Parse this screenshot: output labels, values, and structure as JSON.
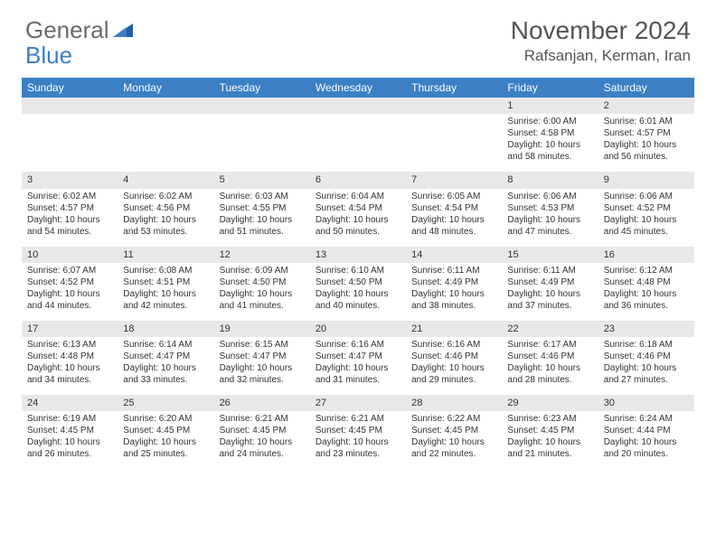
{
  "brand": {
    "part1": "General",
    "part2": "Blue"
  },
  "title": "November 2024",
  "location": "Rafsanjan, Kerman, Iran",
  "colors": {
    "header_bg": "#3b7fc4",
    "header_text": "#ffffff",
    "daynum_bg": "#e8e8e8",
    "text": "#333333",
    "brand_gray": "#6b6b6b",
    "brand_blue": "#3b7fc4",
    "page_bg": "#ffffff"
  },
  "weekdays": [
    "Sunday",
    "Monday",
    "Tuesday",
    "Wednesday",
    "Thursday",
    "Friday",
    "Saturday"
  ],
  "weeks": [
    [
      null,
      null,
      null,
      null,
      null,
      {
        "n": "1",
        "sr": "Sunrise: 6:00 AM",
        "ss": "Sunset: 4:58 PM",
        "dl": "Daylight: 10 hours and 58 minutes."
      },
      {
        "n": "2",
        "sr": "Sunrise: 6:01 AM",
        "ss": "Sunset: 4:57 PM",
        "dl": "Daylight: 10 hours and 56 minutes."
      }
    ],
    [
      {
        "n": "3",
        "sr": "Sunrise: 6:02 AM",
        "ss": "Sunset: 4:57 PM",
        "dl": "Daylight: 10 hours and 54 minutes."
      },
      {
        "n": "4",
        "sr": "Sunrise: 6:02 AM",
        "ss": "Sunset: 4:56 PM",
        "dl": "Daylight: 10 hours and 53 minutes."
      },
      {
        "n": "5",
        "sr": "Sunrise: 6:03 AM",
        "ss": "Sunset: 4:55 PM",
        "dl": "Daylight: 10 hours and 51 minutes."
      },
      {
        "n": "6",
        "sr": "Sunrise: 6:04 AM",
        "ss": "Sunset: 4:54 PM",
        "dl": "Daylight: 10 hours and 50 minutes."
      },
      {
        "n": "7",
        "sr": "Sunrise: 6:05 AM",
        "ss": "Sunset: 4:54 PM",
        "dl": "Daylight: 10 hours and 48 minutes."
      },
      {
        "n": "8",
        "sr": "Sunrise: 6:06 AM",
        "ss": "Sunset: 4:53 PM",
        "dl": "Daylight: 10 hours and 47 minutes."
      },
      {
        "n": "9",
        "sr": "Sunrise: 6:06 AM",
        "ss": "Sunset: 4:52 PM",
        "dl": "Daylight: 10 hours and 45 minutes."
      }
    ],
    [
      {
        "n": "10",
        "sr": "Sunrise: 6:07 AM",
        "ss": "Sunset: 4:52 PM",
        "dl": "Daylight: 10 hours and 44 minutes."
      },
      {
        "n": "11",
        "sr": "Sunrise: 6:08 AM",
        "ss": "Sunset: 4:51 PM",
        "dl": "Daylight: 10 hours and 42 minutes."
      },
      {
        "n": "12",
        "sr": "Sunrise: 6:09 AM",
        "ss": "Sunset: 4:50 PM",
        "dl": "Daylight: 10 hours and 41 minutes."
      },
      {
        "n": "13",
        "sr": "Sunrise: 6:10 AM",
        "ss": "Sunset: 4:50 PM",
        "dl": "Daylight: 10 hours and 40 minutes."
      },
      {
        "n": "14",
        "sr": "Sunrise: 6:11 AM",
        "ss": "Sunset: 4:49 PM",
        "dl": "Daylight: 10 hours and 38 minutes."
      },
      {
        "n": "15",
        "sr": "Sunrise: 6:11 AM",
        "ss": "Sunset: 4:49 PM",
        "dl": "Daylight: 10 hours and 37 minutes."
      },
      {
        "n": "16",
        "sr": "Sunrise: 6:12 AM",
        "ss": "Sunset: 4:48 PM",
        "dl": "Daylight: 10 hours and 36 minutes."
      }
    ],
    [
      {
        "n": "17",
        "sr": "Sunrise: 6:13 AM",
        "ss": "Sunset: 4:48 PM",
        "dl": "Daylight: 10 hours and 34 minutes."
      },
      {
        "n": "18",
        "sr": "Sunrise: 6:14 AM",
        "ss": "Sunset: 4:47 PM",
        "dl": "Daylight: 10 hours and 33 minutes."
      },
      {
        "n": "19",
        "sr": "Sunrise: 6:15 AM",
        "ss": "Sunset: 4:47 PM",
        "dl": "Daylight: 10 hours and 32 minutes."
      },
      {
        "n": "20",
        "sr": "Sunrise: 6:16 AM",
        "ss": "Sunset: 4:47 PM",
        "dl": "Daylight: 10 hours and 31 minutes."
      },
      {
        "n": "21",
        "sr": "Sunrise: 6:16 AM",
        "ss": "Sunset: 4:46 PM",
        "dl": "Daylight: 10 hours and 29 minutes."
      },
      {
        "n": "22",
        "sr": "Sunrise: 6:17 AM",
        "ss": "Sunset: 4:46 PM",
        "dl": "Daylight: 10 hours and 28 minutes."
      },
      {
        "n": "23",
        "sr": "Sunrise: 6:18 AM",
        "ss": "Sunset: 4:46 PM",
        "dl": "Daylight: 10 hours and 27 minutes."
      }
    ],
    [
      {
        "n": "24",
        "sr": "Sunrise: 6:19 AM",
        "ss": "Sunset: 4:45 PM",
        "dl": "Daylight: 10 hours and 26 minutes."
      },
      {
        "n": "25",
        "sr": "Sunrise: 6:20 AM",
        "ss": "Sunset: 4:45 PM",
        "dl": "Daylight: 10 hours and 25 minutes."
      },
      {
        "n": "26",
        "sr": "Sunrise: 6:21 AM",
        "ss": "Sunset: 4:45 PM",
        "dl": "Daylight: 10 hours and 24 minutes."
      },
      {
        "n": "27",
        "sr": "Sunrise: 6:21 AM",
        "ss": "Sunset: 4:45 PM",
        "dl": "Daylight: 10 hours and 23 minutes."
      },
      {
        "n": "28",
        "sr": "Sunrise: 6:22 AM",
        "ss": "Sunset: 4:45 PM",
        "dl": "Daylight: 10 hours and 22 minutes."
      },
      {
        "n": "29",
        "sr": "Sunrise: 6:23 AM",
        "ss": "Sunset: 4:45 PM",
        "dl": "Daylight: 10 hours and 21 minutes."
      },
      {
        "n": "30",
        "sr": "Sunrise: 6:24 AM",
        "ss": "Sunset: 4:44 PM",
        "dl": "Daylight: 10 hours and 20 minutes."
      }
    ]
  ]
}
